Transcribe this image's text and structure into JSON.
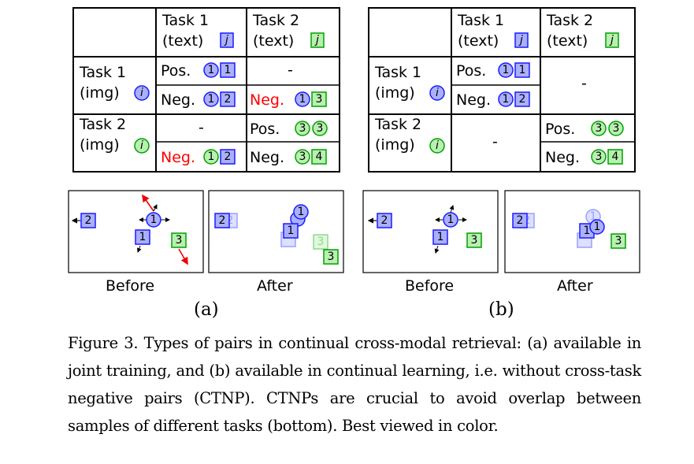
{
  "panel_a": {
    "col_header_1_line1": "Task 1",
    "col_header_1_line2": "(text)",
    "col_header_2_line1": "Task 2",
    "col_header_2_line2": "(text)",
    "row_header_1_line1": "Task 1",
    "row_header_1_line2": "(img)",
    "row_header_2_line1": "Task 2",
    "row_header_2_line2": "(img)",
    "pos": "Pos.",
    "neg": "Neg.",
    "dash": "-",
    "icon_j": "j",
    "icon_i": "i",
    "before": "Before",
    "after": "After",
    "label": "(a)"
  },
  "panel_b": {
    "col_header_1_line1": "Task 1",
    "col_header_1_line2": "(text)",
    "col_header_2_line1": "Task 2",
    "col_header_2_line2": "(text)",
    "row_header_1_line1": "Task 1",
    "row_header_1_line2": "(img)",
    "row_header_2_line1": "Task 2",
    "row_header_2_line2": "(img)",
    "pos": "Pos.",
    "neg": "Neg.",
    "dash": "-",
    "icon_j": "j",
    "icon_i": "i",
    "before": "Before",
    "after": "After",
    "label": "(b)"
  },
  "sample_numbers": [
    "1",
    "2",
    "3",
    "4"
  ],
  "colors": {
    "task1_blue": "#1a1aff",
    "task1_fill": "#aab0ff",
    "task2_green": "#00a000",
    "task2_fill": "#b8f0b0",
    "neg_red": "#ff0000"
  },
  "caption": "Figure 3. Types of pairs in continual cross-modal retrieval: (a) available in joint training, and (b) available in continual learning, i.e. without cross-task negative pairs (CTNP). CTNPs are crucial to avoid overlap between samples of different tasks (bottom). Best viewed in color."
}
